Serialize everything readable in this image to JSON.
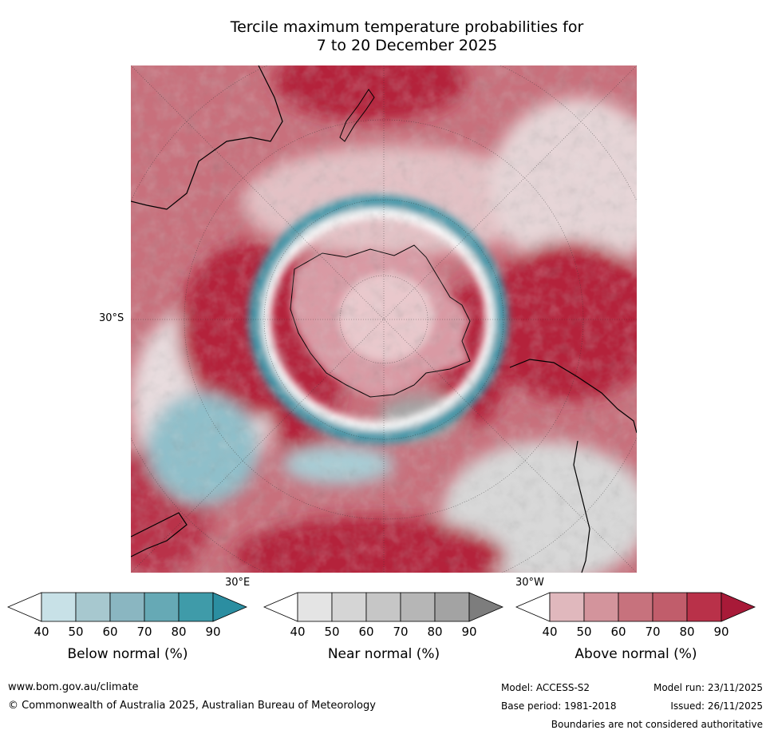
{
  "title": {
    "line1": "Tercile maximum temperature probabilities for",
    "line2": "7 to 20 December 2025"
  },
  "map": {
    "projection_center": "South Pole",
    "lat_label": "30°S",
    "lon_label_east": "30°E",
    "lon_label_west": "30°W",
    "colors": {
      "above_normal_strong": "#b4203b",
      "above_normal_mid": "#c95f6d",
      "above_normal_light": "#dfb3b8",
      "near_normal": "#d9d9d9",
      "below_normal_mid": "#89b9c4",
      "below_normal_strong": "#2f8fa1",
      "ice_white": "#ffffff"
    }
  },
  "colorbars": [
    {
      "label": "Below normal (%)",
      "ticks": [
        "40",
        "50",
        "60",
        "70",
        "80",
        "90"
      ],
      "colors": [
        "#ffffff",
        "#c8e1e7",
        "#a7c8cf",
        "#8ab6c1",
        "#66a9b5",
        "#3f9ba9",
        "#2b8ea1"
      ]
    },
    {
      "label": "Near normal (%)",
      "ticks": [
        "40",
        "50",
        "60",
        "70",
        "80",
        "90"
      ],
      "colors": [
        "#ffffff",
        "#e4e4e4",
        "#d5d5d5",
        "#c6c6c6",
        "#b6b6b6",
        "#a3a3a3",
        "#7d7d7d"
      ]
    },
    {
      "label": "Above normal (%)",
      "ticks": [
        "40",
        "50",
        "60",
        "70",
        "80",
        "90"
      ],
      "colors": [
        "#ffffff",
        "#e0b8bd",
        "#d3949c",
        "#c7727d",
        "#c15d6b",
        "#b93149",
        "#a81a38"
      ]
    }
  ],
  "footer": {
    "url": "www.bom.gov.au/climate",
    "copyright": "© Commonwealth of Australia 2025, Australian Bureau of Meteorology",
    "model": "Model: ACCESS-S2",
    "base_period": "Base period: 1981-2018",
    "model_run": "Model run: 23/11/2025",
    "issued": "Issued: 26/11/2025",
    "disclaimer": "Boundaries are not considered authoritative"
  }
}
